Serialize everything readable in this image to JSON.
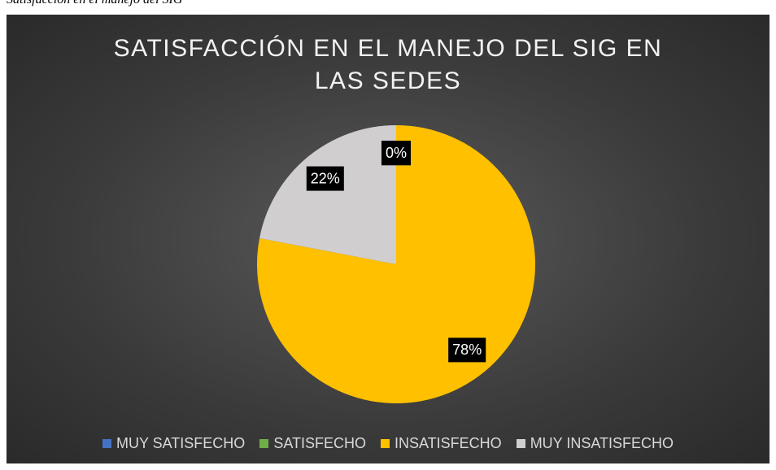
{
  "caption": "Satisfacción en el manejo del SIG",
  "chart_data": {
    "type": "pie",
    "title": "SATISFACCIÓN EN EL MANEJO DEL SIG EN LAS SEDES",
    "categories": [
      "MUY SATISFECHO",
      "SATISFECHO",
      "INSATISFECHO",
      "MUY INSATISFECHO"
    ],
    "values": [
      0,
      0,
      78,
      22
    ],
    "value_labels": [
      "0%",
      "0%",
      "78%",
      "22%"
    ],
    "colors": [
      "#4472c4",
      "#70ad47",
      "#ffc000",
      "#d0cece"
    ],
    "legend": "bottom"
  }
}
